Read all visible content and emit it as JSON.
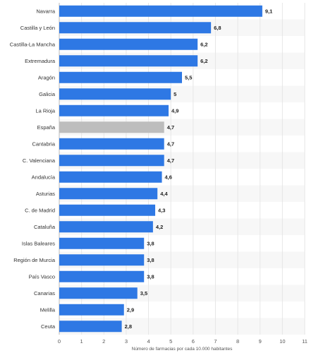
{
  "chart_data": {
    "type": "bar",
    "orientation": "horizontal",
    "categories": [
      "Navarra",
      "Castilla y León",
      "Castilla-La Mancha",
      "Extremadura",
      "Aragón",
      "Galicia",
      "La Rioja",
      "España",
      "Cantabria",
      "C. Valenciana",
      "Andalucía",
      "Asturias",
      "C. de Madrid",
      "Cataluña",
      "Islas Baleares",
      "Región de Murcia",
      "País Vasco",
      "Canarias",
      "Melilla",
      "Ceuta"
    ],
    "values": [
      9.1,
      6.8,
      6.2,
      6.2,
      5.5,
      5,
      4.9,
      4.7,
      4.7,
      4.7,
      4.6,
      4.4,
      4.3,
      4.2,
      3.8,
      3.8,
      3.8,
      3.5,
      2.9,
      2.8
    ],
    "value_labels": [
      "9,1",
      "6,8",
      "6,2",
      "6,2",
      "5,5",
      "5",
      "4,9",
      "4,7",
      "4,7",
      "4,7",
      "4,6",
      "4,4",
      "4,3",
      "4,2",
      "3,8",
      "3,8",
      "3,8",
      "3,5",
      "2,9",
      "2,8"
    ],
    "highlight": "España",
    "xlim": [
      0,
      11
    ],
    "xticks": [
      0,
      1,
      2,
      3,
      4,
      5,
      6,
      7,
      8,
      9,
      10,
      11
    ],
    "xlabel": "Número de farmacias por cada 10.000 habitantes",
    "ylabel": "",
    "title": "",
    "grid": true,
    "colors": {
      "bar": "#2e78e4",
      "highlight": "#bdbdbd",
      "grid": "#e6e6e6",
      "stripe": "#f7f7f7"
    }
  }
}
